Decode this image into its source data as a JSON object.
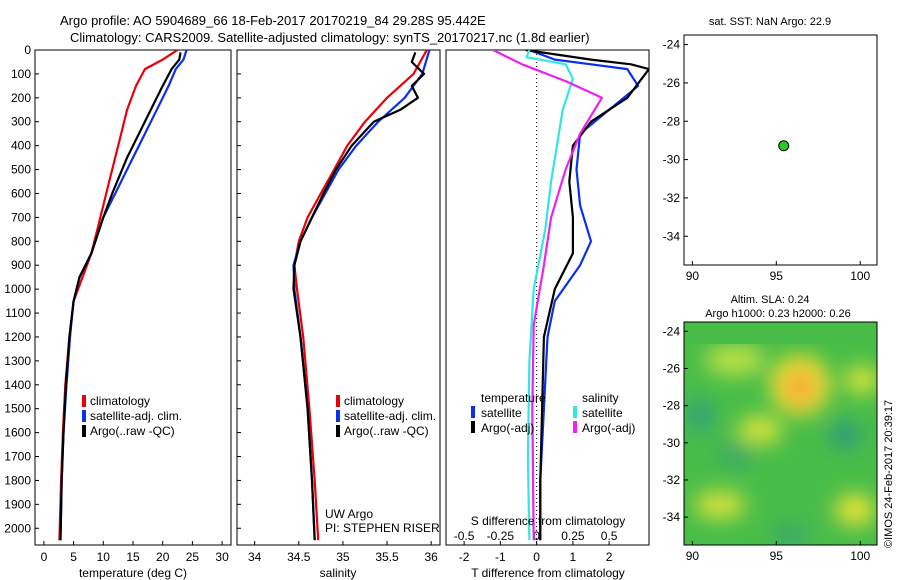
{
  "header": {
    "title": "Argo profile: AO 5904689_66 18-Feb-2017 20170219_84 29.28S 95.442E",
    "subtitle": "Climatology: CARS2009. Satellite-adjusted climatology: synTS_20170217.nc (1.8d earlier)"
  },
  "colors": {
    "climatology": "#e8000b",
    "satellite": "#0a2ff0",
    "argo": "#000000",
    "sat_salinity": "#30e6e6",
    "argo_salinity": "#f020f0",
    "map_dot": "#22cc22"
  },
  "chart_data": [
    {
      "type": "line",
      "panel": "temperature",
      "xlabel": "temperature (deg C)",
      "ylabel": "",
      "xlim": [
        -1.5,
        31.5
      ],
      "ylim": [
        2070,
        0
      ],
      "xticks": [
        0,
        5,
        10,
        15,
        20,
        25,
        30
      ],
      "yticks": [
        0,
        100,
        200,
        300,
        400,
        500,
        600,
        700,
        800,
        900,
        1000,
        1100,
        1200,
        1300,
        1400,
        1500,
        1600,
        1700,
        1800,
        1900,
        2000
      ],
      "legend": [
        "climatology",
        "satellite-adj. clim.",
        "Argo(..raw -QC)"
      ],
      "series": [
        {
          "name": "climatology",
          "color": "climatology",
          "x": [
            22.5,
            20,
            17,
            15.5,
            14,
            12.5,
            11,
            10,
            9,
            8,
            6.5,
            5,
            4.3,
            3.6,
            3.2,
            2.9,
            2.6
          ],
          "y": [
            0,
            40,
            80,
            150,
            250,
            400,
            550,
            650,
            750,
            850,
            950,
            1050,
            1200,
            1400,
            1600,
            1800,
            2050
          ]
        },
        {
          "name": "satellite-adj. clim.",
          "color": "satellite",
          "x": [
            24,
            23.5,
            22.2,
            21,
            19,
            17,
            15,
            12,
            10,
            8,
            6,
            5,
            4.4,
            3.8,
            3.3,
            3.0,
            2.8
          ],
          "y": [
            0,
            40,
            80,
            150,
            250,
            350,
            450,
            600,
            700,
            850,
            950,
            1050,
            1200,
            1400,
            1600,
            1800,
            2050
          ]
        },
        {
          "name": "Argo(..raw -QC)",
          "color": "argo",
          "x": [
            23,
            22.8,
            21.5,
            20,
            18,
            16,
            14,
            11.5,
            10,
            8,
            6,
            5,
            4.3,
            3.7,
            3.3,
            3.0,
            2.8
          ],
          "y": [
            10,
            40,
            80,
            150,
            250,
            350,
            450,
            600,
            700,
            850,
            950,
            1050,
            1200,
            1400,
            1600,
            1800,
            2050
          ]
        }
      ]
    },
    {
      "type": "line",
      "panel": "salinity",
      "xlabel": "salinity",
      "ylabel": "",
      "xlim": [
        33.8,
        36.1
      ],
      "ylim": [
        2070,
        0
      ],
      "xticks": [
        34,
        34.5,
        35,
        35.5,
        36
      ],
      "xticklabels": [
        "34",
        "34.5",
        "35",
        "35.5",
        "36"
      ],
      "legend": [
        "climatology",
        "satellite-adj. clim.",
        "Argo(..raw -QC)"
      ],
      "annotations": [
        "UW Argo",
        "PI: STEPHEN RISER"
      ],
      "series": [
        {
          "name": "climatology",
          "color": "climatology",
          "x": [
            35.95,
            35.8,
            35.5,
            35.25,
            35.05,
            34.9,
            34.75,
            34.6,
            34.5,
            34.45,
            34.48,
            34.55,
            34.62,
            34.68,
            34.72
          ],
          "y": [
            0,
            100,
            200,
            300,
            400,
            500,
            600,
            700,
            800,
            900,
            1000,
            1200,
            1500,
            1800,
            2050
          ]
        },
        {
          "name": "satellite-adj. clim.",
          "color": "satellite",
          "x": [
            35.98,
            35.9,
            35.7,
            35.4,
            35.15,
            34.95,
            34.8,
            34.65,
            34.52,
            34.44,
            34.45,
            34.52,
            34.6,
            34.65,
            34.68
          ],
          "y": [
            0,
            100,
            200,
            300,
            400,
            500,
            600,
            700,
            800,
            900,
            1000,
            1200,
            1500,
            1800,
            2050
          ]
        },
        {
          "name": "Argo(..raw -QC)",
          "color": "argo",
          "x": [
            35.82,
            35.78,
            35.92,
            35.78,
            35.85,
            35.65,
            35.35,
            35.1,
            34.92,
            34.78,
            34.65,
            34.52,
            34.45,
            34.44,
            34.52,
            34.6,
            34.65,
            34.68
          ],
          "y": [
            10,
            50,
            100,
            150,
            200,
            250,
            300,
            400,
            500,
            600,
            700,
            800,
            900,
            1000,
            1200,
            1500,
            1800,
            2050
          ]
        }
      ]
    },
    {
      "type": "line",
      "panel": "difference",
      "xlabel": "T difference from climatology",
      "x2label": "S difference from climatology",
      "xlim": [
        -2.5,
        3.1
      ],
      "ylim": [
        2070,
        0
      ],
      "xticks": [
        -2,
        -1,
        0,
        1,
        2
      ],
      "x2ticks": [
        -0.5,
        -0.25,
        0,
        0.25,
        0.5
      ],
      "x2ticklabels": [
        "-0.5",
        "-0.25",
        "0",
        "0.25",
        "0.5"
      ],
      "legend_headers": [
        "temperature",
        "salinity"
      ],
      "legend": [
        "satellite",
        "Argo(-adj)",
        "satellite",
        "Argo(-adj)"
      ],
      "series": [
        {
          "name": "satellite",
          "color": "satellite",
          "group": "temperature",
          "x": [
            -0.2,
            0.5,
            1.5,
            2.5,
            2.8,
            2.0,
            1.2,
            1.1,
            1.2,
            1.5,
            1.2,
            0.5,
            0.3,
            0.2,
            0.1,
            0.1
          ],
          "y": [
            0,
            40,
            60,
            80,
            150,
            250,
            350,
            500,
            650,
            800,
            900,
            1050,
            1200,
            1500,
            1800,
            2050
          ]
        },
        {
          "name": "Argo(-adj)",
          "color": "argo",
          "group": "temperature",
          "x": [
            -0.3,
            1.5,
            2.6,
            3.1,
            2.5,
            1.5,
            1.0,
            0.9,
            1.0,
            1.0,
            0.5,
            0.2,
            0.15,
            0.1,
            0.1
          ],
          "y": [
            0,
            40,
            60,
            80,
            200,
            300,
            400,
            550,
            700,
            850,
            1000,
            1200,
            1500,
            1800,
            2050
          ]
        },
        {
          "name": "satellite",
          "color": "sat_salinity",
          "group": "salinity",
          "x": [
            -0.05,
            -0.07,
            0.2,
            0.25,
            0.18,
            0.14,
            0.1,
            0.06,
            -0.02,
            -0.05,
            -0.06,
            -0.05
          ],
          "y": [
            0,
            30,
            60,
            120,
            250,
            400,
            550,
            750,
            1000,
            1300,
            1700,
            2050
          ]
        },
        {
          "name": "Argo(-adj)",
          "color": "argo_salinity",
          "group": "salinity",
          "x": [
            -0.3,
            -0.1,
            0.2,
            0.45,
            0.3,
            0.2,
            0.1,
            0.05,
            -0.02,
            -0.03,
            -0.02
          ],
          "y": [
            0,
            60,
            130,
            200,
            350,
            500,
            700,
            900,
            1150,
            1500,
            2050
          ]
        }
      ]
    },
    {
      "type": "scatter",
      "panel": "map",
      "title": "sat. SST: NaN Argo: 22.9",
      "xlim": [
        89.5,
        101
      ],
      "ylim": [
        -35.5,
        -23.5
      ],
      "xticks": [
        90,
        95,
        100
      ],
      "yticks": [
        -24,
        -26,
        -28,
        -30,
        -32,
        -34
      ],
      "points": [
        {
          "x": 95.442,
          "y": -29.28
        }
      ]
    },
    {
      "type": "heatmap",
      "panel": "sla-map",
      "title": "Altim. SLA: 0.24",
      "subtitle": "Argo h1000: 0.23 h2000: 0.26",
      "xlim": [
        89.5,
        101
      ],
      "ylim": [
        -35.5,
        -23.5
      ],
      "xticks": [
        90,
        95,
        100
      ],
      "yticks": [
        -24,
        -26,
        -28,
        -30,
        -32,
        -34
      ]
    }
  ],
  "credit": "©IMOS 24-Feb-2017 20:39:17"
}
